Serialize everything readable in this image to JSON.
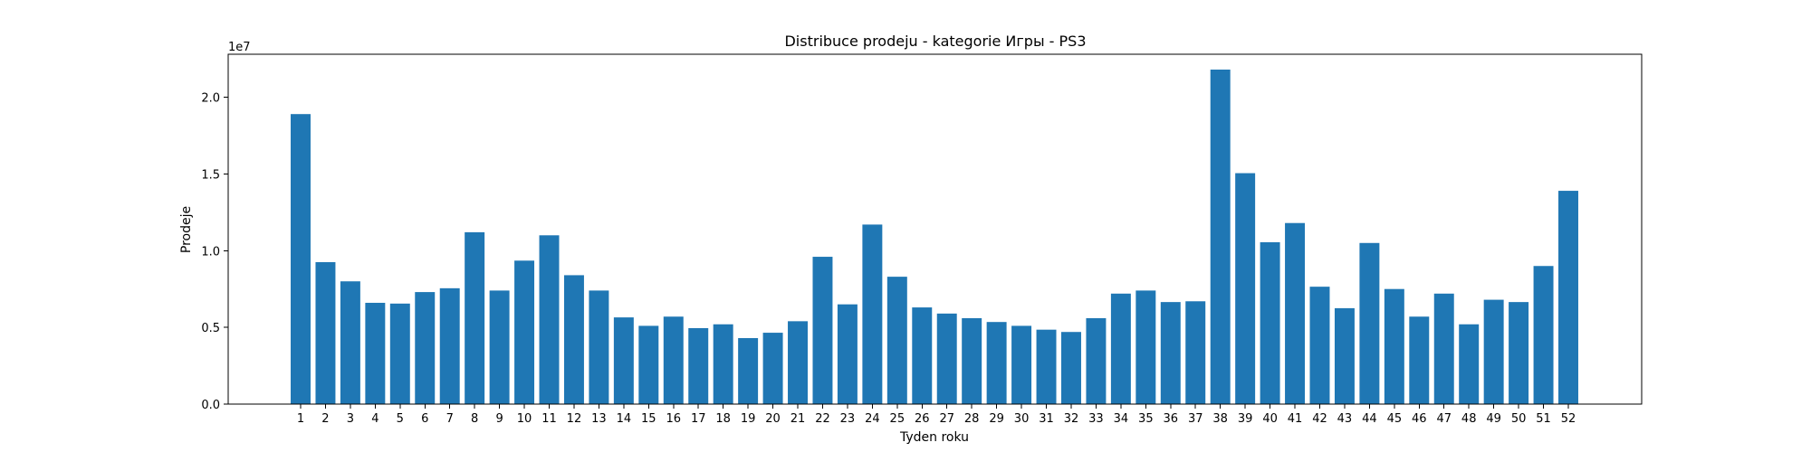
{
  "chart_data": {
    "type": "bar",
    "title": "Distribuce prodeju  - kategorie Игры - PS3",
    "xlabel": "Tyden roku",
    "ylabel": "Prodeje",
    "y_offset_label": "1e7",
    "y_scale": 10000000,
    "ylim": [
      0,
      22800000
    ],
    "yticks": [
      0,
      5000000,
      10000000,
      15000000,
      20000000
    ],
    "ytick_labels": [
      "0.0",
      "0.5",
      "1.0",
      "1.5",
      "2.0"
    ],
    "grid": false,
    "bar_color": "#1f77b4",
    "categories": [
      "1",
      "2",
      "3",
      "4",
      "5",
      "6",
      "7",
      "8",
      "9",
      "10",
      "11",
      "12",
      "13",
      "14",
      "15",
      "16",
      "17",
      "18",
      "19",
      "20",
      "21",
      "22",
      "23",
      "24",
      "25",
      "26",
      "27",
      "28",
      "29",
      "30",
      "31",
      "32",
      "33",
      "34",
      "35",
      "36",
      "37",
      "38",
      "39",
      "40",
      "41",
      "42",
      "43",
      "44",
      "45",
      "46",
      "47",
      "48",
      "49",
      "50",
      "51",
      "52"
    ],
    "values": [
      18900000,
      9250000,
      8000000,
      6600000,
      6550000,
      7300000,
      7550000,
      11200000,
      7400000,
      9350000,
      11000000,
      8400000,
      7400000,
      5650000,
      5100000,
      5700000,
      4950000,
      5200000,
      4300000,
      4650000,
      5400000,
      9600000,
      6500000,
      11700000,
      8300000,
      6300000,
      5900000,
      5600000,
      5350000,
      5100000,
      4850000,
      4700000,
      5600000,
      7200000,
      7400000,
      6650000,
      6700000,
      21800000,
      15050000,
      10550000,
      11800000,
      7650000,
      6250000,
      10500000,
      7500000,
      5700000,
      7200000,
      5200000,
      6800000,
      6650000,
      9000000,
      13900000
    ]
  }
}
